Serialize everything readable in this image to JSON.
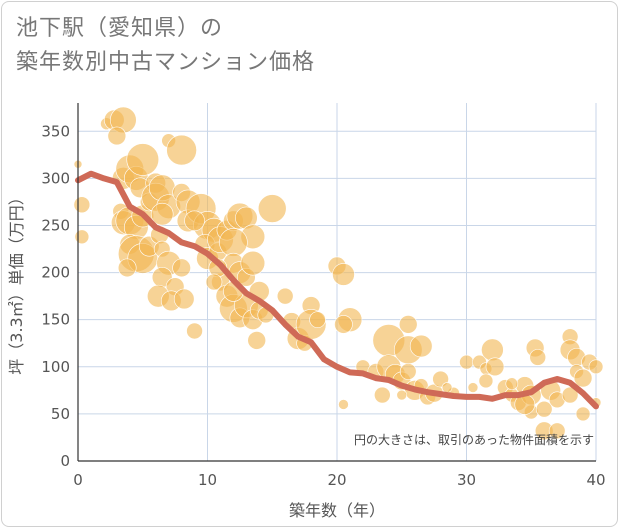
{
  "page": {
    "title_line1": "池下駅（愛知県）の",
    "title_line2": "築年数別中古マンション価格"
  },
  "colors": {
    "bubble": "#f2b550",
    "trend": "#cf6a57",
    "grid": "#c9d6e8",
    "axis": "#333333"
  },
  "chart_data": {
    "type": "scatter",
    "title": "池下駅（愛知県）の 築年数別中古マンション価格",
    "xlabel": "築年数（年）",
    "ylabel": "坪（3.3㎡）単価（万円）",
    "xlim": [
      0,
      40
    ],
    "ylim": [
      0,
      380
    ],
    "x_ticks": [
      0,
      10,
      20,
      30,
      40
    ],
    "y_ticks": [
      0,
      50,
      100,
      150,
      200,
      250,
      300,
      350
    ],
    "grid": true,
    "note": "円の大きさは、取引のあった物件面積を示す",
    "series": [
      {
        "kind": "bubble",
        "points": [
          [
            0,
            315,
            4
          ],
          [
            0.3,
            272,
            8
          ],
          [
            0.3,
            238,
            7
          ],
          [
            2.2,
            358,
            6
          ],
          [
            2.8,
            362,
            10
          ],
          [
            3.5,
            362,
            13
          ],
          [
            3,
            345,
            9
          ],
          [
            3.5,
            300,
            11
          ],
          [
            4,
            310,
            14
          ],
          [
            4.5,
            300,
            12
          ],
          [
            5,
            320,
            16
          ],
          [
            4.8,
            290,
            10
          ],
          [
            3.3,
            265,
            8
          ],
          [
            3.5,
            253,
            12
          ],
          [
            4,
            255,
            14
          ],
          [
            4.5,
            248,
            12
          ],
          [
            5,
            260,
            11
          ],
          [
            5.5,
            275,
            9
          ],
          [
            4,
            230,
            10
          ],
          [
            4.5,
            220,
            18
          ],
          [
            5,
            215,
            15
          ],
          [
            3.8,
            205,
            9
          ],
          [
            5.5,
            228,
            10
          ],
          [
            6,
            295,
            10
          ],
          [
            6,
            280,
            14
          ],
          [
            6.5,
            290,
            13
          ],
          [
            7,
            270,
            12
          ],
          [
            6.5,
            262,
            11
          ],
          [
            7,
            340,
            7
          ],
          [
            8,
            330,
            15
          ],
          [
            8,
            285,
            9
          ],
          [
            8.5,
            275,
            12
          ],
          [
            8.5,
            255,
            11
          ],
          [
            6.3,
            240,
            9
          ],
          [
            6.5,
            225,
            8
          ],
          [
            7,
            210,
            12
          ],
          [
            6.5,
            195,
            10
          ],
          [
            7.5,
            185,
            9
          ],
          [
            6.2,
            175,
            11
          ],
          [
            7.2,
            170,
            10
          ],
          [
            8,
            205,
            9
          ],
          [
            8.2,
            172,
            10
          ],
          [
            9,
            138,
            8
          ],
          [
            9.5,
            268,
            15
          ],
          [
            10,
            250,
            14
          ],
          [
            10.5,
            245,
            12
          ],
          [
            9.8,
            230,
            10
          ],
          [
            10,
            215,
            11
          ],
          [
            10.8,
            222,
            9
          ],
          [
            11,
            235,
            13
          ],
          [
            11.5,
            245,
            10
          ],
          [
            12,
            255,
            10
          ],
          [
            12.5,
            260,
            13
          ],
          [
            13,
            258,
            11
          ],
          [
            13.5,
            238,
            12
          ],
          [
            12,
            232,
            14
          ],
          [
            12,
            210,
            10
          ],
          [
            12.5,
            200,
            11
          ],
          [
            13,
            195,
            9
          ],
          [
            13.5,
            210,
            12
          ],
          [
            14,
            180,
            10
          ],
          [
            11,
            190,
            9
          ],
          [
            11.5,
            175,
            11
          ],
          [
            12,
            162,
            14
          ],
          [
            12.5,
            152,
            10
          ],
          [
            13,
            165,
            12
          ],
          [
            13.5,
            150,
            10
          ],
          [
            14,
            160,
            9
          ],
          [
            12,
            180,
            10
          ],
          [
            14.5,
            155,
            8
          ],
          [
            15,
            268,
            14
          ],
          [
            13.8,
            128,
            9
          ],
          [
            16,
            175,
            8
          ],
          [
            16.5,
            148,
            9
          ],
          [
            17,
            130,
            11
          ],
          [
            17.5,
            125,
            8
          ],
          [
            18,
            165,
            9
          ],
          [
            18,
            145,
            15
          ],
          [
            18.5,
            150,
            8
          ],
          [
            20,
            207,
            9
          ],
          [
            20.5,
            198,
            11
          ],
          [
            21,
            150,
            12
          ],
          [
            20.5,
            145,
            9
          ],
          [
            22,
            100,
            7
          ],
          [
            23,
            95,
            8
          ],
          [
            24,
            128,
            16
          ],
          [
            24,
            100,
            12
          ],
          [
            24.5,
            92,
            10
          ],
          [
            25,
            85,
            9
          ],
          [
            25.5,
            95,
            8
          ],
          [
            23.5,
            70,
            8
          ],
          [
            25.5,
            118,
            14
          ],
          [
            26.5,
            122,
            11
          ],
          [
            26,
            75,
            10
          ],
          [
            26.5,
            80,
            7
          ],
          [
            25.5,
            145,
            9
          ],
          [
            27,
            68,
            8
          ],
          [
            27.5,
            72,
            9
          ],
          [
            28,
            87,
            8
          ],
          [
            29,
            72,
            6
          ],
          [
            30,
            105,
            7
          ],
          [
            31,
            105,
            7
          ],
          [
            31.5,
            98,
            6
          ],
          [
            31.5,
            85,
            7
          ],
          [
            32,
            118,
            11
          ],
          [
            32.2,
            100,
            9
          ],
          [
            33,
            78,
            8
          ],
          [
            33.5,
            70,
            7
          ],
          [
            34,
            62,
            8
          ],
          [
            34.5,
            80,
            9
          ],
          [
            35,
            70,
            10
          ],
          [
            35.3,
            120,
            9
          ],
          [
            35.5,
            110,
            8
          ],
          [
            35,
            52,
            7
          ],
          [
            36,
            55,
            8
          ],
          [
            36.5,
            75,
            10
          ],
          [
            37,
            65,
            8
          ],
          [
            36,
            32,
            9
          ],
          [
            37,
            32,
            8
          ],
          [
            38,
            132,
            8
          ],
          [
            38,
            118,
            10
          ],
          [
            38.5,
            110,
            9
          ],
          [
            38.5,
            95,
            7
          ],
          [
            38,
            70,
            8
          ],
          [
            39,
            88,
            9
          ],
          [
            39.5,
            105,
            8
          ],
          [
            39,
            50,
            7
          ],
          [
            40,
            100,
            7
          ],
          [
            40,
            62,
            5
          ],
          [
            34.5,
            60,
            10
          ],
          [
            33.5,
            82,
            6
          ],
          [
            30.5,
            78,
            5
          ],
          [
            28.5,
            78,
            5
          ],
          [
            20.5,
            60,
            5
          ],
          [
            25,
            70,
            5
          ],
          [
            10.8,
            205,
            9
          ],
          [
            9,
            255,
            10
          ],
          [
            10.5,
            190,
            8
          ]
        ]
      },
      {
        "kind": "line",
        "name": "",
        "x": [
          0,
          1,
          2,
          3,
          4,
          5,
          6,
          7,
          8,
          9,
          10,
          11,
          12,
          13,
          14,
          15,
          16,
          17,
          18,
          19,
          20,
          21,
          22,
          23,
          24,
          25,
          26,
          27,
          28,
          29,
          30,
          31,
          32,
          33,
          34,
          35,
          36,
          37,
          38,
          39,
          40
        ],
        "y": [
          298,
          305,
          300,
          296,
          270,
          262,
          248,
          242,
          232,
          228,
          220,
          208,
          192,
          178,
          170,
          160,
          145,
          132,
          126,
          108,
          100,
          94,
          93,
          88,
          86,
          80,
          76,
          73,
          71,
          69,
          68,
          68,
          66,
          70,
          70,
          73,
          83,
          87,
          83,
          72,
          58
        ]
      }
    ]
  }
}
